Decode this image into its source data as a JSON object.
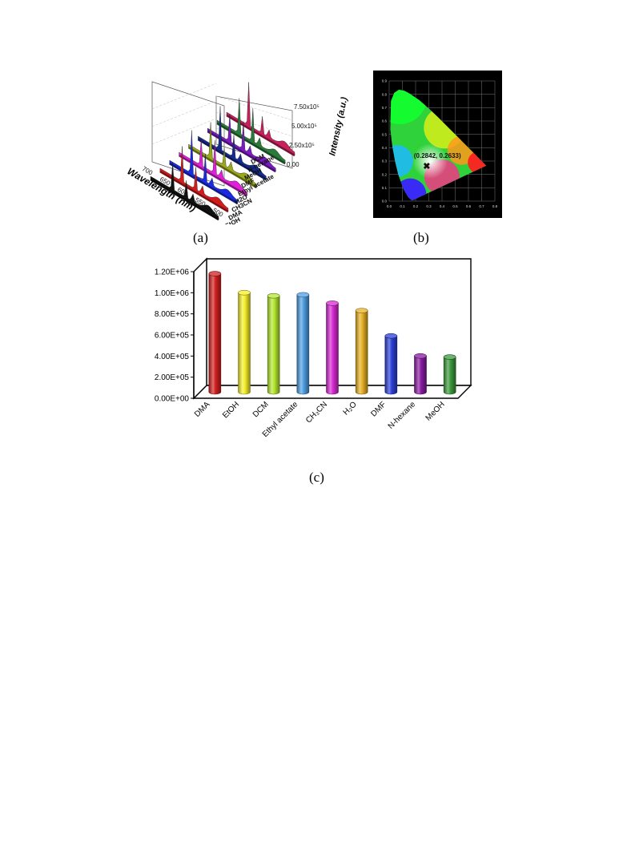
{
  "figures": {
    "a": {
      "panel_label": "(a)",
      "z_axis_label": "Intensity (a.u.)",
      "z_ticks": [
        "0.00",
        "2.50x10⁵",
        "5.00x10⁵",
        "7.50x10⁵"
      ],
      "x_axis_label": "Wavelength (nm)",
      "x_ticks": [
        "700",
        "650",
        "600",
        "550",
        "500"
      ],
      "solvents": [
        "DCM",
        "N-hexane",
        "MeOH",
        "DMF",
        "Ethyl acetate",
        "H2O",
        "CH3CN",
        "DMA",
        "EtOH"
      ]
    },
    "b": {
      "panel_label": "(b)",
      "annotation": "(0.2842, 0.2633)",
      "point": {
        "x": 0.2842,
        "y": 0.2633
      },
      "x_ticks": [
        "0.0",
        "0.1",
        "0.2",
        "0.3",
        "0.4",
        "0.5",
        "0.6",
        "0.7",
        "0.8"
      ],
      "y_ticks": [
        "0.0",
        "0.1",
        "0.2",
        "0.3",
        "0.4",
        "0.5",
        "0.6",
        "0.7",
        "0.8",
        "0.9"
      ]
    },
    "c": {
      "panel_label": "(c)"
    }
  },
  "chart_data": [
    {
      "type": "line",
      "title": "",
      "xlabel": "Wavelength (nm)",
      "ylabel": "Intensity (a.u.)",
      "xlim": [
        500,
        700
      ],
      "ylim": [
        0,
        1000000
      ],
      "grid": true,
      "series": [
        {
          "name": "EtOH",
          "color": "#111111"
        },
        {
          "name": "DMA",
          "color": "#d01c1c"
        },
        {
          "name": "CH3CN",
          "color": "#1a2ae0"
        },
        {
          "name": "H2O",
          "color": "#e020d8"
        },
        {
          "name": "Ethyl acetate",
          "color": "#9aa81c"
        },
        {
          "name": "DMF",
          "color": "#152a8c"
        },
        {
          "name": "MeOH",
          "color": "#7a1ac0"
        },
        {
          "name": "N-hexane",
          "color": "#2a7a3a"
        },
        {
          "name": "DCM",
          "color": "#c8205a"
        }
      ]
    },
    {
      "type": "scatter",
      "title": "",
      "xlim": [
        0,
        0.8
      ],
      "ylim": [
        0,
        0.9
      ],
      "grid": true,
      "points": [
        {
          "x": 0.2842,
          "y": 0.2633,
          "label": "(0.2842, 0.2633)"
        }
      ]
    },
    {
      "type": "bar",
      "title": "",
      "xlabel": "",
      "ylabel": "",
      "ylim": [
        0,
        1200000
      ],
      "y_ticks": [
        "0.00E+00",
        "2.00E+05",
        "4.00E+05",
        "6.00E+05",
        "8.00E+05",
        "1.00E+06",
        "1.20E+06"
      ],
      "categories": [
        "DMA",
        "EtOH",
        "DCM",
        "Ethyl acetate",
        "CH₃CN",
        "H₂O",
        "DMF",
        "N-hexane",
        "MeOH"
      ],
      "values": [
        1120000,
        940000,
        910000,
        920000,
        840000,
        770000,
        530000,
        340000,
        330000
      ],
      "colors": [
        "#d21f1f",
        "#f6ef2a",
        "#b5e82f",
        "#4f9fe3",
        "#d82ad3",
        "#e7b123",
        "#2c40d8",
        "#8a1aa3",
        "#3c9a3c"
      ]
    }
  ]
}
